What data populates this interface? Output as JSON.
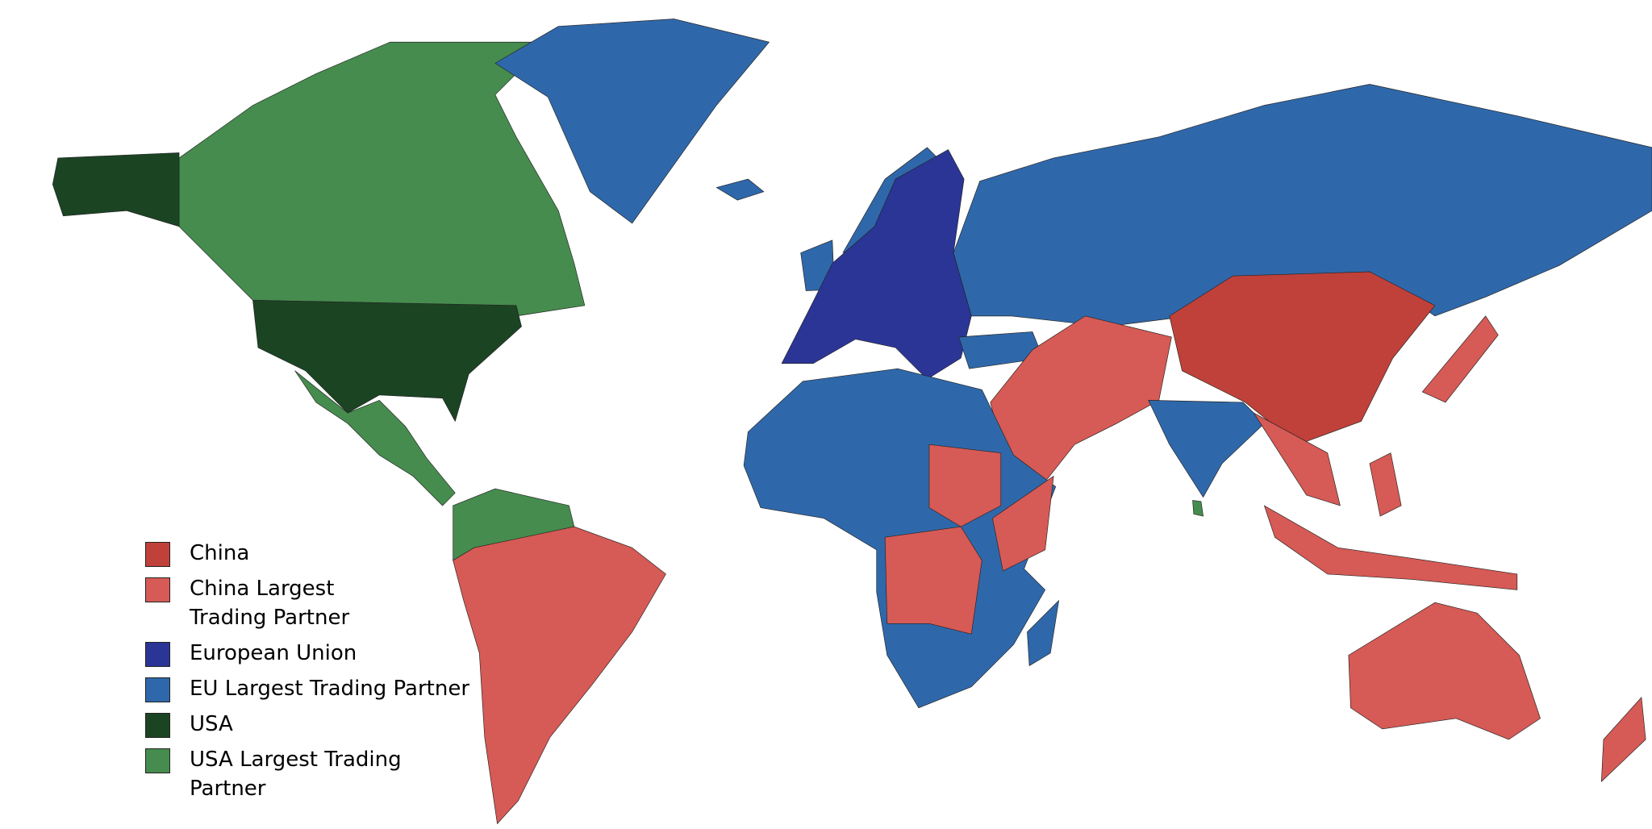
{
  "legend": {
    "items": [
      {
        "key": "china",
        "label": "China",
        "color": "#c0413a"
      },
      {
        "key": "china_partner",
        "label": "China Largest Trading Partner",
        "color": "#d65a55"
      },
      {
        "key": "eu",
        "label": "European Union",
        "color": "#2b3596"
      },
      {
        "key": "eu_partner",
        "label": "EU Largest Trading Partner",
        "color": "#2f68aa"
      },
      {
        "key": "usa",
        "label": "USA",
        "color": "#1b4423"
      },
      {
        "key": "usa_partner",
        "label": "USA Largest Trading Partner",
        "color": "#468c4e"
      }
    ]
  }
}
